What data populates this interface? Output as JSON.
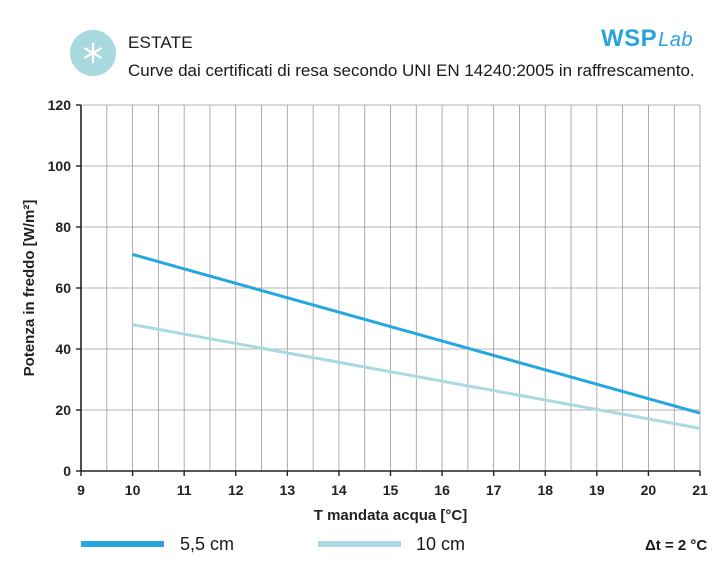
{
  "header": {
    "title": "ESTATE",
    "subtitle": "Curve dai certificati di resa secondo UNI EN 14240:2005 in raffrescamento.",
    "logo_main": "WSP",
    "logo_suffix": "Lab",
    "badge_icon": "snowflake-icon"
  },
  "colors": {
    "badge": "#a8d9df",
    "logo": "#29a3d9",
    "series_1": "#25a7df",
    "series_2": "#a8dbe0",
    "grid": "#9a9a9a",
    "axis": "#222222"
  },
  "chart_data": {
    "type": "line",
    "xlabel": "T mandata acqua [°C]",
    "ylabel": "Potenza in freddo [W/m²]",
    "xlim": [
      9,
      21
    ],
    "ylim": [
      0,
      120
    ],
    "x_ticks": [
      9,
      10,
      11,
      12,
      13,
      14,
      15,
      16,
      17,
      18,
      19,
      20,
      21
    ],
    "y_ticks": [
      0,
      20,
      40,
      60,
      80,
      100,
      120
    ],
    "grid": true,
    "legend_position": "bottom",
    "series": [
      {
        "name": "5,5 cm",
        "x": [
          10,
          21
        ],
        "y": [
          71,
          19
        ],
        "color": "#25a7df"
      },
      {
        "name": "10 cm",
        "x": [
          10,
          21
        ],
        "y": [
          48,
          14
        ],
        "color": "#a8dbe0"
      }
    ],
    "annotation": "Δt = 2 °C"
  }
}
